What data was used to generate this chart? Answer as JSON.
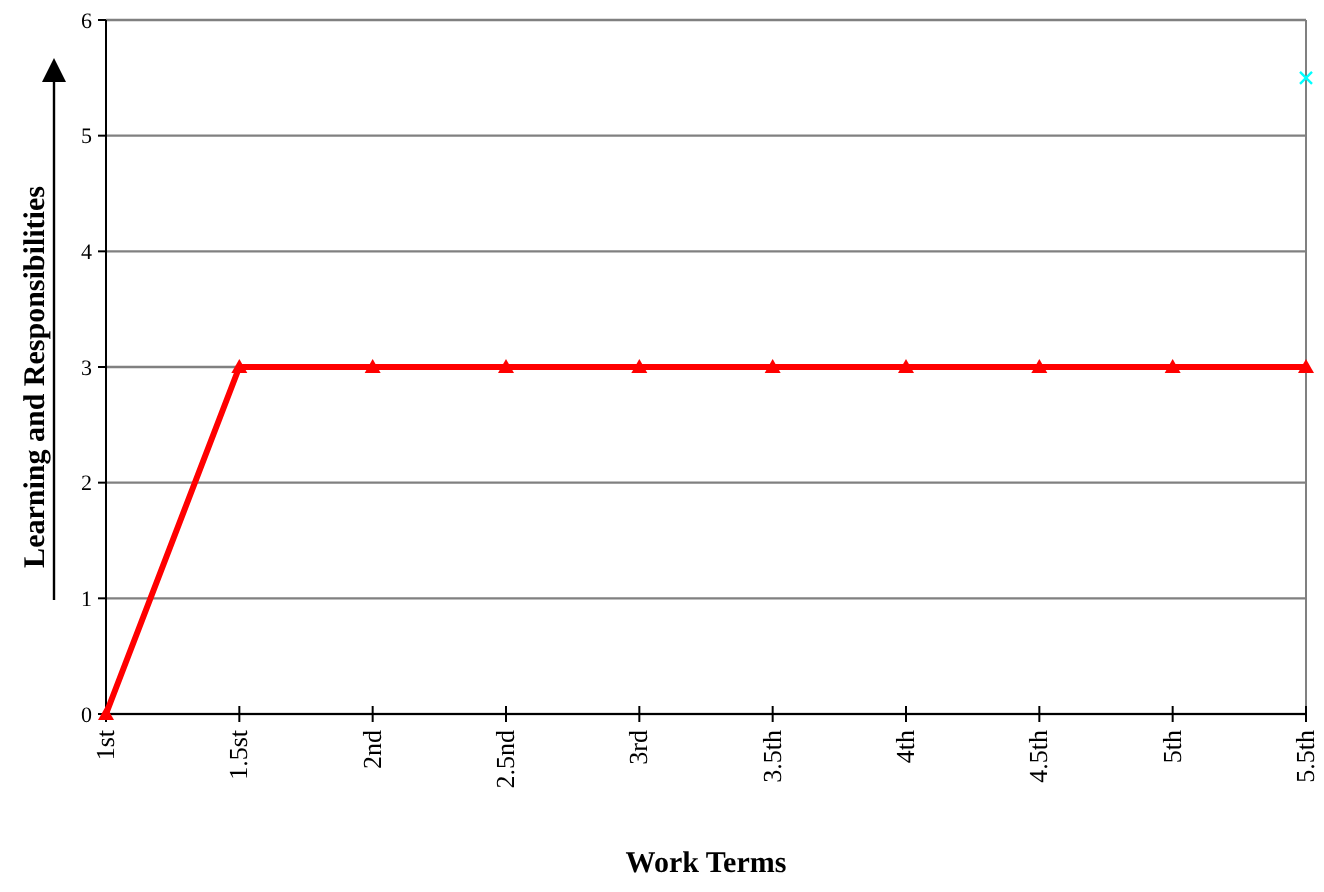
{
  "chart_data": {
    "type": "line",
    "xlabel": "Work Terms",
    "ylabel": "Learning and Responsibilities",
    "categories": [
      "1st",
      "1.5st",
      "2nd",
      "2.5nd",
      "3rd",
      "3.5th",
      "4th",
      "4.5th",
      "5th",
      "5.5th"
    ],
    "series": [
      {
        "color": "#ff0000",
        "marker": "triangle",
        "values": [
          0,
          3,
          3,
          3,
          3,
          3,
          3,
          3,
          3,
          3
        ]
      },
      {
        "type": "scatter",
        "color": "#00ffff",
        "marker": "cross",
        "values": [
          null,
          null,
          null,
          null,
          null,
          null,
          null,
          null,
          null,
          5.5
        ]
      }
    ],
    "ylim": [
      0,
      6
    ],
    "yticks": [
      0,
      1,
      2,
      3,
      4,
      5,
      6
    ],
    "grid": "y"
  }
}
